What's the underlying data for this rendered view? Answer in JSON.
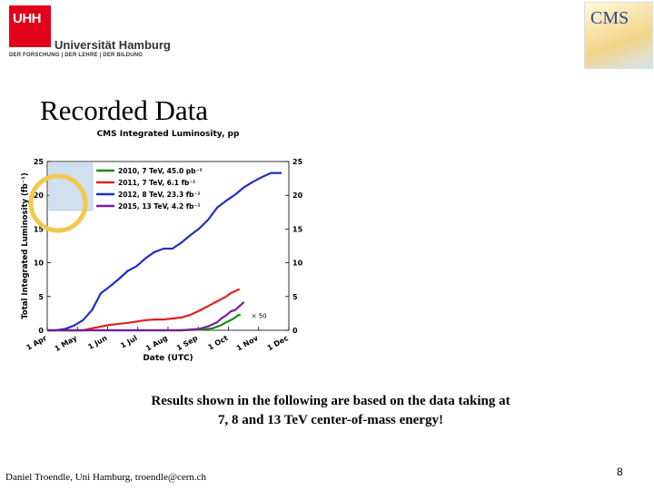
{
  "header": {
    "uni_mark": "UHH",
    "uni_name": "Universität Hamburg",
    "uni_tagline": "DER FORSCHUNG | DER LEHRE | DER BILDUNG",
    "experiment_logo": "CMS"
  },
  "slide": {
    "title": "Recorded Data",
    "caption_line1": "Results shown in the following are based on the data taking at",
    "caption_line2": "7, 8 and 13 TeV center-of-mass energy!"
  },
  "footer": {
    "author": "Daniel Troendle, Uni Hamburg, troendle@cern.ch",
    "page_number": "8"
  },
  "chart_data": {
    "type": "line",
    "title": "CMS Integrated Luminosity, pp",
    "xlabel": "Date (UTC)",
    "ylabel": "Total Integrated Luminosity (fb⁻¹)",
    "x_ticks": [
      "1 Apr",
      "1 May",
      "1 Jun",
      "1 Jul",
      "1 Aug",
      "1 Sep",
      "1 Oct",
      "1 Nov",
      "1 Dec"
    ],
    "xlim_days": [
      0,
      270
    ],
    "ylim": [
      0,
      25
    ],
    "y_ticks": [
      0,
      5,
      10,
      15,
      20,
      25
    ],
    "grid": false,
    "legend_position": "top-left",
    "annotation": "× 50",
    "series": [
      {
        "name": "2010, 7 TeV, 45.0 pb⁻¹",
        "color": "#1a8a1a",
        "x": [
          0,
          150,
          170,
          185,
          195,
          200,
          205,
          210,
          213,
          216
        ],
        "y": [
          0,
          0,
          0.1,
          0.3,
          0.8,
          1.2,
          1.5,
          1.9,
          2.2,
          2.3
        ]
      },
      {
        "name": "2011, 7 TeV, 6.1 fb⁻¹",
        "color": "#e02020",
        "x": [
          0,
          40,
          50,
          70,
          90,
          100,
          110,
          120,
          130,
          150,
          160,
          170,
          180,
          190,
          200,
          205,
          210,
          215
        ],
        "y": [
          0,
          0,
          0.3,
          0.8,
          1.1,
          1.3,
          1.5,
          1.6,
          1.6,
          1.9,
          2.3,
          2.9,
          3.6,
          4.3,
          5.0,
          5.5,
          5.8,
          6.1
        ]
      },
      {
        "name": "2012, 8 TeV, 23.3 fb⁻¹",
        "color": "#2030c0",
        "x": [
          0,
          10,
          20,
          30,
          40,
          50,
          60,
          70,
          80,
          90,
          100,
          110,
          120,
          130,
          140,
          150,
          160,
          170,
          180,
          190,
          200,
          210,
          220,
          230,
          240,
          250,
          262
        ],
        "y": [
          0,
          0,
          0.2,
          0.7,
          1.5,
          3,
          5.5,
          6.5,
          7.6,
          8.8,
          9.5,
          10.7,
          11.6,
          12.1,
          12.1,
          13.0,
          14.1,
          15.1,
          16.4,
          18.2,
          19.2,
          20.1,
          21.2,
          22.0,
          22.7,
          23.3,
          23.3
        ]
      },
      {
        "name": "2015, 13 TeV, 4.2 fb⁻¹",
        "color": "#7a1a9a",
        "x": [
          0,
          150,
          170,
          180,
          190,
          195,
          200,
          205,
          210,
          215,
          220
        ],
        "y": [
          0,
          0,
          0.2,
          0.6,
          1.2,
          1.8,
          2.2,
          2.8,
          3.0,
          3.6,
          4.2
        ]
      }
    ]
  }
}
